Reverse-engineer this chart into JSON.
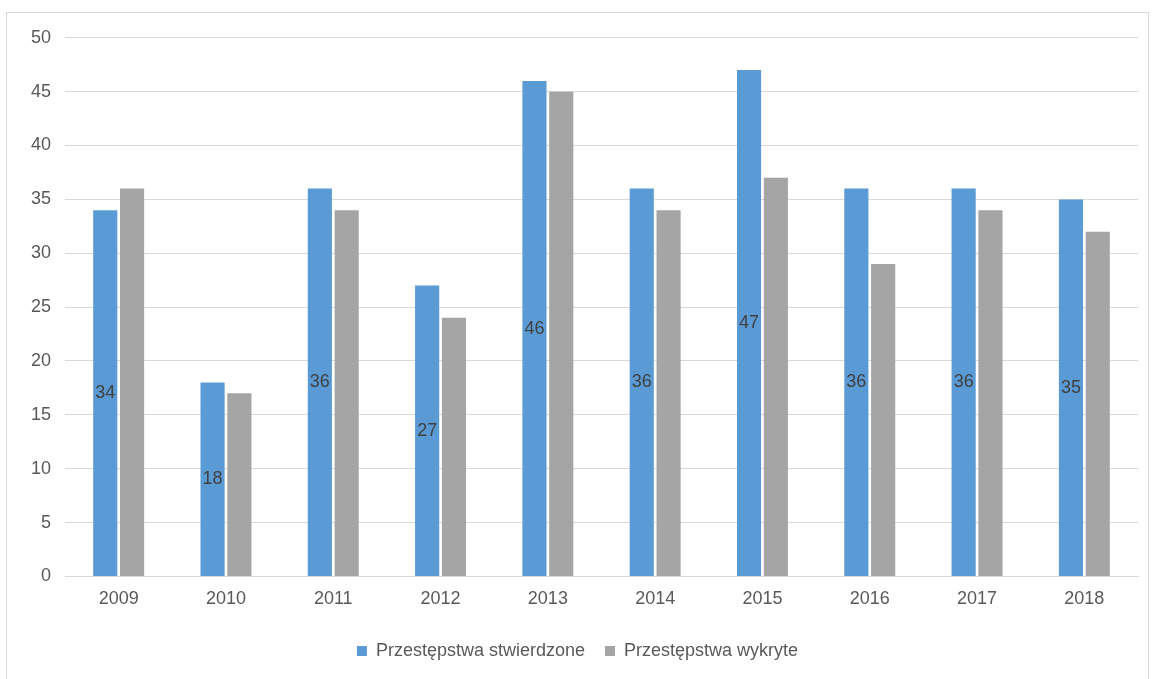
{
  "chart_data": {
    "type": "bar",
    "categories": [
      "2009",
      "2010",
      "2011",
      "2012",
      "2013",
      "2014",
      "2015",
      "2016",
      "2017",
      "2018"
    ],
    "series": [
      {
        "name": "Przestępstwa stwierdzone",
        "color": "#5b9bd5",
        "values": [
          34,
          18,
          36,
          27,
          46,
          36,
          47,
          36,
          36,
          35
        ],
        "value_labels": [
          "34",
          "18",
          "36",
          "27",
          "46",
          "36",
          "47",
          "36",
          "36",
          "35"
        ]
      },
      {
        "name": "Przestępstwa wykryte",
        "color": "#a5a5a5",
        "values": [
          36,
          17,
          34,
          24,
          45,
          34,
          37,
          29,
          34,
          32
        ]
      }
    ],
    "ylim": [
      0,
      50
    ],
    "yticks": [
      0,
      5,
      10,
      15,
      20,
      25,
      30,
      35,
      40,
      45,
      50
    ],
    "grid": "y",
    "legend": "bottom"
  }
}
